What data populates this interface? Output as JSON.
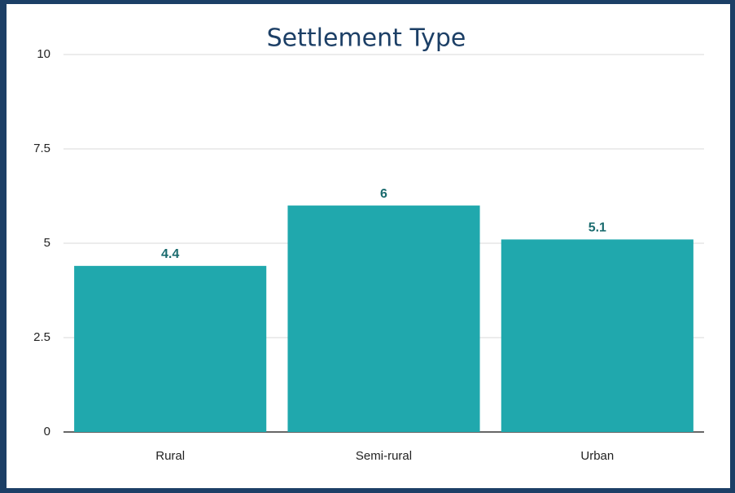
{
  "chart_data": {
    "type": "bar",
    "title": "Settlement Type",
    "categories": [
      "Rural",
      "Semi-rural",
      "Urban"
    ],
    "values": [
      4.4,
      6,
      5.1
    ],
    "color": "#20a8ad",
    "ylim": [
      0,
      10
    ],
    "yticks": [
      0,
      2.5,
      5,
      7.5,
      10
    ],
    "grid": true
  }
}
